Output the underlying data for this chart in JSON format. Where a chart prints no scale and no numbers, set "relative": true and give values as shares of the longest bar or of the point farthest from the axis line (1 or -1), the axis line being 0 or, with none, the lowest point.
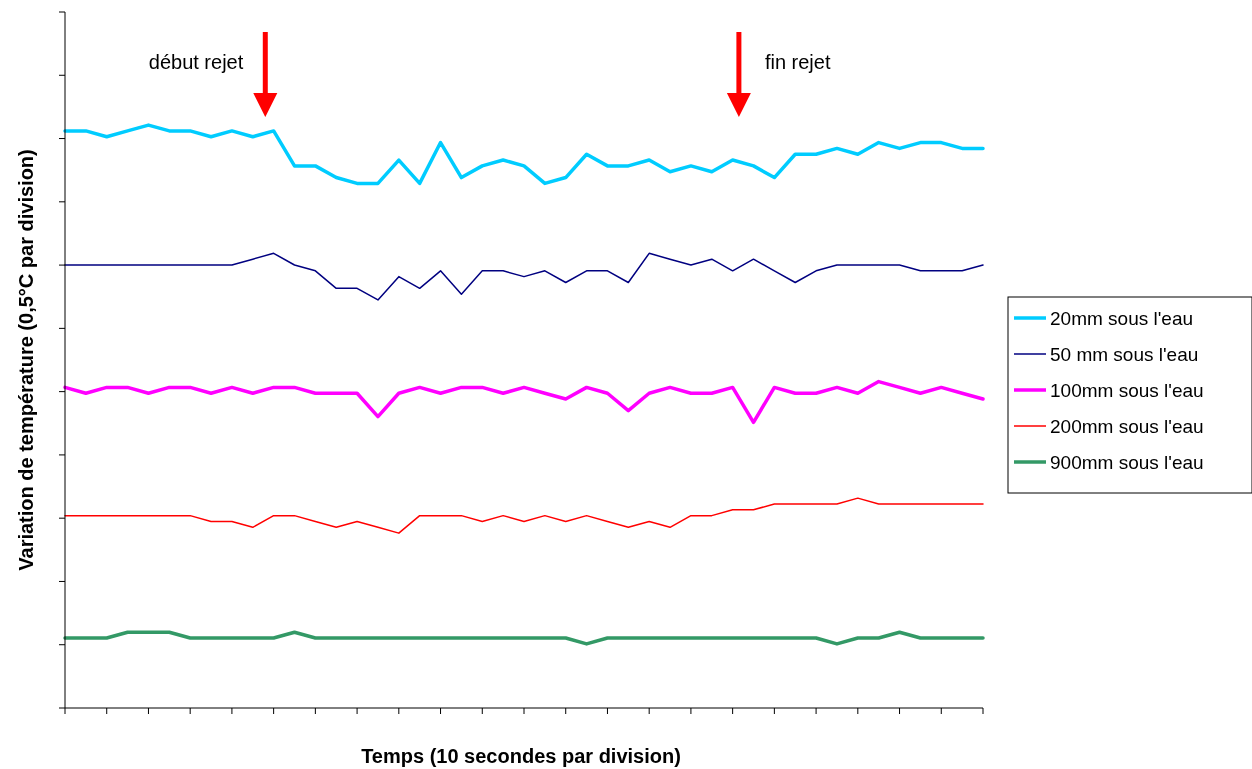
{
  "chart_data": {
    "type": "line",
    "relative": true,
    "xlabel": "Temps (10 secondes par division)",
    "ylabel": "Variation de température (0,5°C par division)",
    "legend": "right",
    "grid": false,
    "line_style": "solid",
    "annotations": [
      "début rejet",
      "fin rejet"
    ],
    "categories": [
      null,
      null,
      null,
      null,
      null,
      null,
      null,
      null,
      null,
      null,
      null,
      null,
      null,
      null,
      null,
      null,
      null,
      null,
      null,
      null,
      null,
      null,
      null,
      null,
      null,
      null,
      null,
      null,
      null,
      null,
      null,
      null,
      null,
      null,
      null,
      null,
      null,
      null,
      null,
      null,
      null,
      null,
      null,
      null,
      null
    ],
    "series": [
      {
        "name": "20mm sous l'eau",
        "color": "#00ccff",
        "values": [
          0.99,
          0.99,
          0.98,
          0.99,
          1.0,
          0.99,
          0.99,
          0.98,
          0.99,
          0.98,
          0.99,
          0.93,
          0.93,
          0.91,
          0.9,
          0.9,
          0.94,
          0.9,
          0.97,
          0.91,
          0.93,
          0.94,
          0.93,
          0.9,
          0.91,
          0.95,
          0.93,
          0.93,
          0.94,
          0.92,
          0.93,
          0.92,
          0.94,
          0.93,
          0.91,
          0.95,
          0.95,
          0.96,
          0.95,
          0.97,
          0.96,
          0.97,
          0.97,
          0.96,
          0.96
        ]
      },
      {
        "name": "50 mm sous l'eau",
        "color": "#000080",
        "values": [
          0.76,
          0.76,
          0.76,
          0.76,
          0.76,
          0.76,
          0.76,
          0.76,
          0.76,
          0.77,
          0.78,
          0.76,
          0.75,
          0.72,
          0.72,
          0.7,
          0.74,
          0.72,
          0.75,
          0.71,
          0.75,
          0.75,
          0.74,
          0.75,
          0.73,
          0.75,
          0.75,
          0.73,
          0.78,
          0.77,
          0.76,
          0.77,
          0.75,
          0.77,
          0.75,
          0.73,
          0.75,
          0.76,
          0.76,
          0.76,
          0.76,
          0.75,
          0.75,
          0.75,
          0.76
        ]
      },
      {
        "name": "100mm sous l'eau",
        "color": "#ff00ff",
        "values": [
          0.55,
          0.54,
          0.55,
          0.55,
          0.54,
          0.55,
          0.55,
          0.54,
          0.55,
          0.54,
          0.55,
          0.55,
          0.54,
          0.54,
          0.54,
          0.5,
          0.54,
          0.55,
          0.54,
          0.55,
          0.55,
          0.54,
          0.55,
          0.54,
          0.53,
          0.55,
          0.54,
          0.51,
          0.54,
          0.55,
          0.54,
          0.54,
          0.55,
          0.49,
          0.55,
          0.54,
          0.54,
          0.55,
          0.54,
          0.56,
          0.55,
          0.54,
          0.55,
          0.54,
          0.53
        ]
      },
      {
        "name": "200mm sous l'eau",
        "color": "#ff0000",
        "values": [
          0.33,
          0.33,
          0.33,
          0.33,
          0.33,
          0.33,
          0.33,
          0.32,
          0.32,
          0.31,
          0.33,
          0.33,
          0.32,
          0.31,
          0.32,
          0.31,
          0.3,
          0.33,
          0.33,
          0.33,
          0.32,
          0.33,
          0.32,
          0.33,
          0.32,
          0.33,
          0.32,
          0.31,
          0.32,
          0.31,
          0.33,
          0.33,
          0.34,
          0.34,
          0.35,
          0.35,
          0.35,
          0.35,
          0.36,
          0.35,
          0.35,
          0.35,
          0.35,
          0.35,
          0.35
        ]
      },
      {
        "name": "900mm sous l'eau",
        "color": "#339966",
        "values": [
          0.12,
          0.12,
          0.12,
          0.13,
          0.13,
          0.13,
          0.12,
          0.12,
          0.12,
          0.12,
          0.12,
          0.13,
          0.12,
          0.12,
          0.12,
          0.12,
          0.12,
          0.12,
          0.12,
          0.12,
          0.12,
          0.12,
          0.12,
          0.12,
          0.12,
          0.11,
          0.12,
          0.12,
          0.12,
          0.12,
          0.12,
          0.12,
          0.12,
          0.12,
          0.12,
          0.12,
          0.12,
          0.11,
          0.12,
          0.12,
          0.13,
          0.12,
          0.12,
          0.12,
          0.12
        ]
      }
    ]
  }
}
